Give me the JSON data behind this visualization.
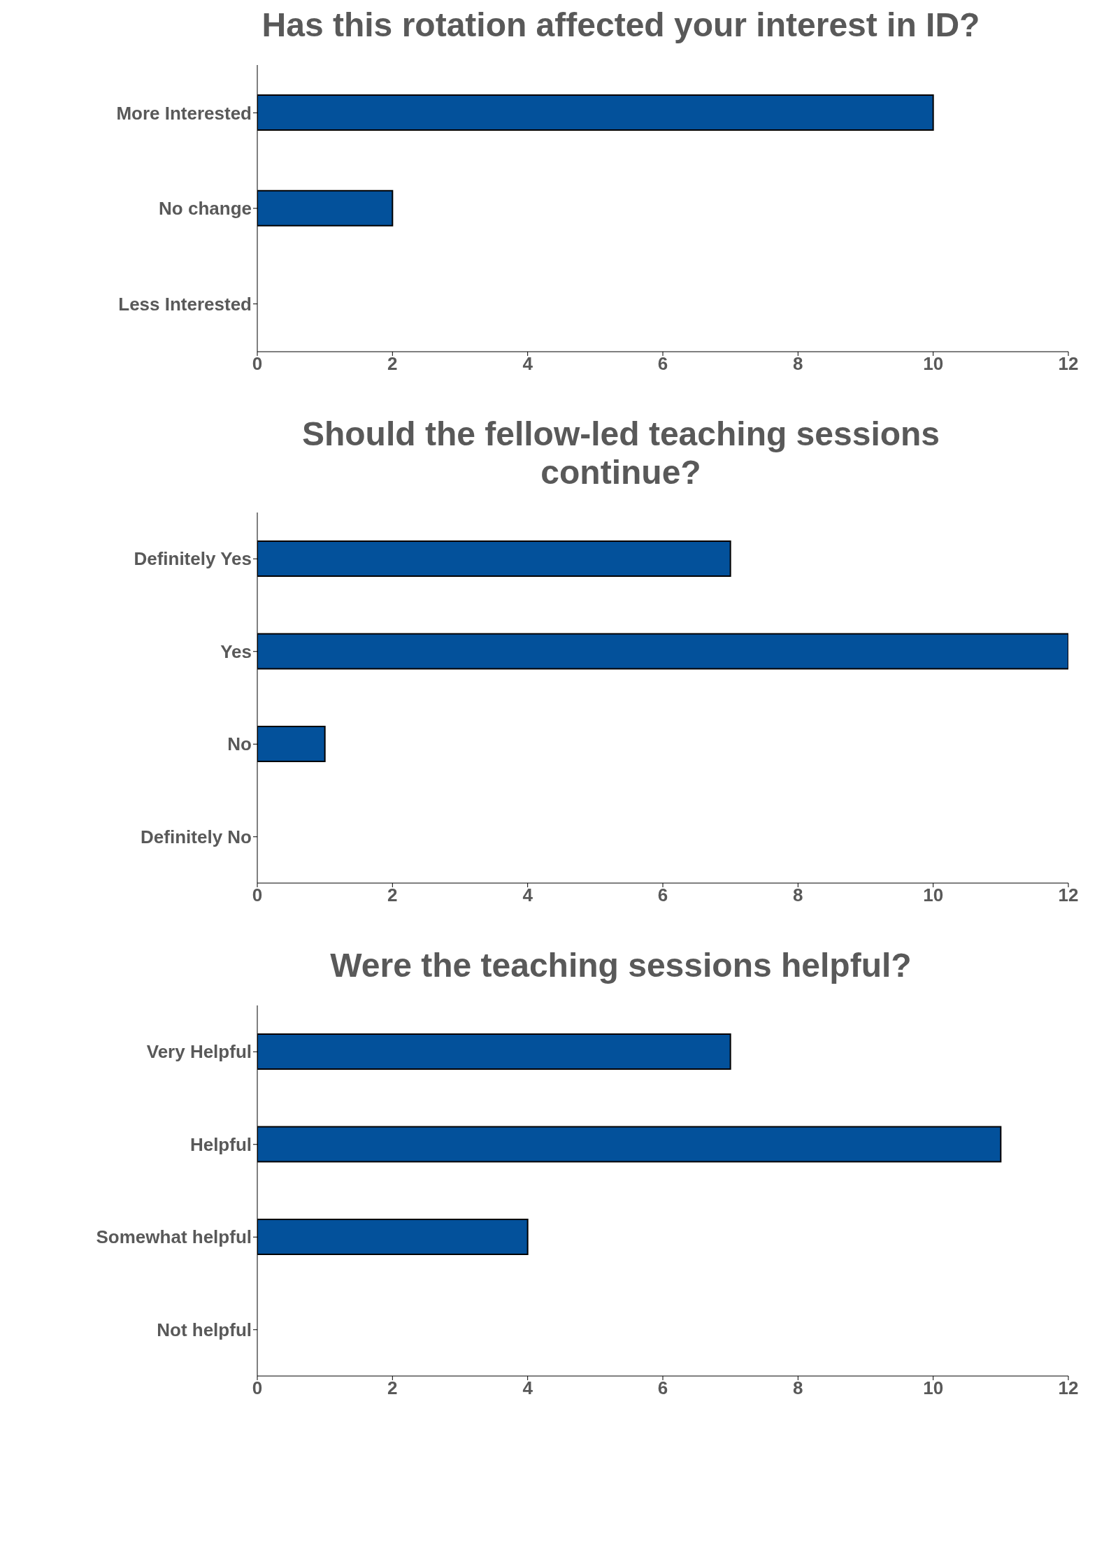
{
  "chart_data": [
    {
      "type": "bar",
      "orientation": "horizontal",
      "title": "Has this rotation affected your interest in ID?",
      "categories": [
        "More Interested",
        "No change",
        "Less Interested"
      ],
      "values": [
        10,
        2,
        0
      ],
      "color": "#03519b",
      "xlim": [
        0,
        12
      ],
      "xticks": [
        0,
        2,
        4,
        6,
        8,
        10,
        12
      ],
      "grid": false
    },
    {
      "type": "bar",
      "orientation": "horizontal",
      "title": "Should the fellow-led teaching sessions continue?",
      "categories": [
        "Definitely Yes",
        "Yes",
        "No",
        "Definitely No"
      ],
      "values": [
        7,
        12,
        1,
        0
      ],
      "color": "#03519b",
      "xlim": [
        0,
        12
      ],
      "xticks": [
        0,
        2,
        4,
        6,
        8,
        10,
        12
      ],
      "grid": false
    },
    {
      "type": "bar",
      "orientation": "horizontal",
      "title": "Were the teaching sessions helpful?",
      "categories": [
        "Very Helpful",
        "Helpful",
        "Somewhat helpful",
        "Not helpful"
      ],
      "values": [
        7,
        11,
        4,
        0
      ],
      "color": "#03519b",
      "xlim": [
        0,
        12
      ],
      "xticks": [
        0,
        2,
        4,
        6,
        8,
        10,
        12
      ],
      "grid": false
    }
  ]
}
